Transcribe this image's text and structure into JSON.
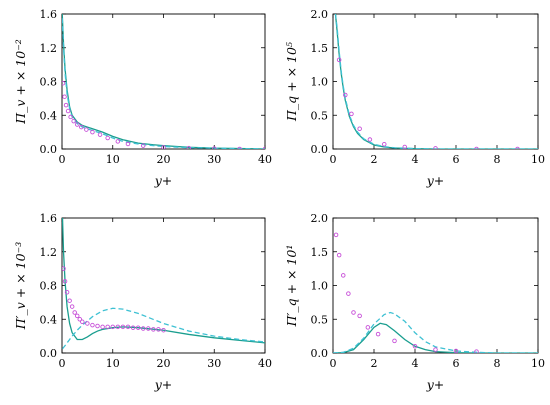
{
  "colors": {
    "solid": "#1a9e8f",
    "dashed": "#3ec1d3",
    "markers": "#c74fd8",
    "axes": "#000000"
  },
  "chart_data": [
    {
      "type": "line",
      "panel": "top-left",
      "xlabel": "y+",
      "ylabel": "Π̅_v + × 10⁻²",
      "xlim": [
        0,
        40
      ],
      "ylim": [
        0,
        1.6
      ],
      "xticks": [
        "0",
        "10",
        "20",
        "30",
        "40"
      ],
      "yticks": [
        "0.0",
        "0.4",
        "0.8",
        "1.2",
        "1.6"
      ],
      "series": [
        {
          "style": "solid",
          "x": [
            0.05,
            0.3,
            0.6,
            1,
            1.5,
            2,
            3,
            4,
            5,
            6,
            8,
            10,
            12,
            15,
            18,
            20,
            25,
            30,
            35,
            40
          ],
          "y": [
            1.6,
            1.25,
            0.95,
            0.7,
            0.5,
            0.4,
            0.32,
            0.28,
            0.26,
            0.24,
            0.2,
            0.15,
            0.11,
            0.07,
            0.05,
            0.04,
            0.02,
            0.01,
            0.005,
            0.0
          ]
        },
        {
          "style": "dashed",
          "x": [
            0.05,
            0.3,
            0.6,
            1,
            1.5,
            2,
            3,
            4,
            5,
            6,
            8,
            10,
            12,
            15,
            18,
            20,
            25,
            30,
            35,
            40
          ],
          "y": [
            1.55,
            1.2,
            0.9,
            0.65,
            0.48,
            0.38,
            0.3,
            0.26,
            0.24,
            0.22,
            0.18,
            0.13,
            0.09,
            0.06,
            0.04,
            0.03,
            0.015,
            0.01,
            0.005,
            0.0
          ]
        },
        {
          "style": "markers",
          "x": [
            0.2,
            0.5,
            0.8,
            1.2,
            1.7,
            2.3,
            3,
            3.8,
            4.8,
            6,
            7.5,
            9,
            11,
            13,
            16,
            20,
            25,
            30,
            35,
            40
          ],
          "y": [
            0.78,
            0.62,
            0.52,
            0.45,
            0.38,
            0.33,
            0.29,
            0.26,
            0.23,
            0.2,
            0.17,
            0.13,
            0.09,
            0.06,
            0.04,
            0.02,
            0.01,
            0.005,
            0.0,
            0.0
          ]
        }
      ]
    },
    {
      "type": "line",
      "panel": "top-right",
      "xlabel": "y+",
      "ylabel": "Π̅_q + × 10⁵",
      "xlim": [
        0,
        10
      ],
      "ylim": [
        0,
        2.0
      ],
      "xticks": [
        "0",
        "2",
        "4",
        "6",
        "8",
        "10"
      ],
      "yticks": [
        "0.0",
        "0.5",
        "1.0",
        "1.5",
        "2.0"
      ],
      "series": [
        {
          "style": "solid",
          "x": [
            0.12,
            0.2,
            0.3,
            0.4,
            0.5,
            0.6,
            0.8,
            1.0,
            1.2,
            1.5,
            2.0,
            2.5,
            3,
            4,
            5,
            6,
            8,
            10
          ],
          "y": [
            2.0,
            1.75,
            1.4,
            1.12,
            0.9,
            0.72,
            0.48,
            0.33,
            0.23,
            0.14,
            0.06,
            0.03,
            0.015,
            0.005,
            0.0,
            0.0,
            0.0,
            0.0
          ]
        },
        {
          "style": "dashed",
          "x": [
            0.12,
            0.2,
            0.3,
            0.4,
            0.5,
            0.6,
            0.8,
            1.0,
            1.2,
            1.5,
            2.0,
            2.5,
            3,
            4,
            5,
            6,
            8,
            10
          ],
          "y": [
            2.0,
            1.8,
            1.45,
            1.15,
            0.93,
            0.75,
            0.5,
            0.35,
            0.25,
            0.15,
            0.07,
            0.035,
            0.018,
            0.006,
            0.0,
            0.0,
            0.0,
            0.0
          ]
        },
        {
          "style": "markers",
          "x": [
            0.3,
            0.6,
            0.9,
            1.3,
            1.8,
            2.5,
            3.5,
            5,
            7,
            9
          ],
          "y": [
            1.32,
            0.8,
            0.52,
            0.3,
            0.14,
            0.07,
            0.03,
            0.01,
            0.0,
            0.0
          ]
        }
      ]
    },
    {
      "type": "line",
      "panel": "bottom-left",
      "xlabel": "y+",
      "ylabel": "Π′_v + × 10⁻³",
      "xlim": [
        0,
        40
      ],
      "ylim": [
        0,
        1.6
      ],
      "xticks": [
        "0",
        "10",
        "20",
        "30",
        "40"
      ],
      "yticks": [
        "0.0",
        "0.4",
        "0.8",
        "1.2",
        "1.6"
      ],
      "series": [
        {
          "style": "solid",
          "x": [
            0.1,
            0.3,
            0.6,
            1,
            1.5,
            2,
            3,
            4,
            5,
            6,
            7,
            8,
            10,
            12,
            15,
            20,
            25,
            30,
            35,
            40
          ],
          "y": [
            1.6,
            1.2,
            0.85,
            0.55,
            0.35,
            0.24,
            0.16,
            0.16,
            0.19,
            0.23,
            0.26,
            0.28,
            0.3,
            0.31,
            0.3,
            0.27,
            0.22,
            0.18,
            0.15,
            0.12
          ]
        },
        {
          "style": "dashed",
          "x": [
            0.1,
            0.5,
            1,
            1.5,
            2,
            3,
            4,
            5,
            6,
            8,
            10,
            12,
            15,
            20,
            25,
            30,
            35,
            40
          ],
          "y": [
            0.05,
            0.08,
            0.12,
            0.16,
            0.2,
            0.27,
            0.33,
            0.38,
            0.43,
            0.5,
            0.53,
            0.52,
            0.47,
            0.35,
            0.26,
            0.2,
            0.16,
            0.13
          ]
        },
        {
          "style": "markers",
          "x": [
            0.3,
            0.6,
            1,
            1.5,
            2,
            2.5,
            3,
            3.5,
            4,
            5,
            6,
            7,
            8,
            9,
            10,
            11,
            12,
            13,
            14,
            15,
            16,
            17,
            18,
            19,
            20
          ],
          "y": [
            1.0,
            0.85,
            0.72,
            0.62,
            0.55,
            0.48,
            0.44,
            0.4,
            0.37,
            0.35,
            0.33,
            0.32,
            0.31,
            0.31,
            0.31,
            0.31,
            0.31,
            0.31,
            0.3,
            0.3,
            0.29,
            0.29,
            0.28,
            0.28,
            0.27
          ]
        }
      ]
    },
    {
      "type": "line",
      "panel": "bottom-right",
      "xlabel": "y+",
      "ylabel": "Π′_q + × 10¹",
      "xlim": [
        0,
        10
      ],
      "ylim": [
        0,
        2.0
      ],
      "xticks": [
        "0",
        "2",
        "4",
        "6",
        "8",
        "10"
      ],
      "yticks": [
        "0.0",
        "0.5",
        "1.0",
        "1.5",
        "2.0"
      ],
      "series": [
        {
          "style": "solid",
          "x": [
            0,
            0.5,
            1.0,
            1.5,
            2.0,
            2.3,
            2.6,
            3.0,
            3.5,
            4.0,
            4.5,
            5,
            6,
            7,
            8,
            9,
            10
          ],
          "y": [
            0.0,
            0.005,
            0.05,
            0.2,
            0.38,
            0.44,
            0.42,
            0.33,
            0.2,
            0.1,
            0.05,
            0.02,
            0.005,
            0.0,
            0.0,
            0.0,
            0.0
          ]
        },
        {
          "style": "dashed",
          "x": [
            0,
            0.5,
            1.0,
            1.5,
            2.0,
            2.5,
            2.8,
            3.0,
            3.5,
            4.0,
            4.5,
            5,
            6,
            7,
            8,
            9,
            10
          ],
          "y": [
            0.0,
            0.01,
            0.07,
            0.22,
            0.43,
            0.57,
            0.6,
            0.58,
            0.47,
            0.3,
            0.17,
            0.09,
            0.03,
            0.01,
            0.0,
            0.0,
            0.0
          ]
        },
        {
          "style": "markers",
          "x": [
            0.15,
            0.3,
            0.5,
            0.75,
            1.0,
            1.3,
            1.7,
            2.2,
            3.0,
            4.0,
            5.0,
            6.0,
            7.0
          ],
          "y": [
            1.75,
            1.45,
            1.15,
            0.88,
            0.6,
            0.55,
            0.38,
            0.28,
            0.18,
            0.1,
            0.05,
            0.03,
            0.02
          ]
        }
      ]
    }
  ]
}
